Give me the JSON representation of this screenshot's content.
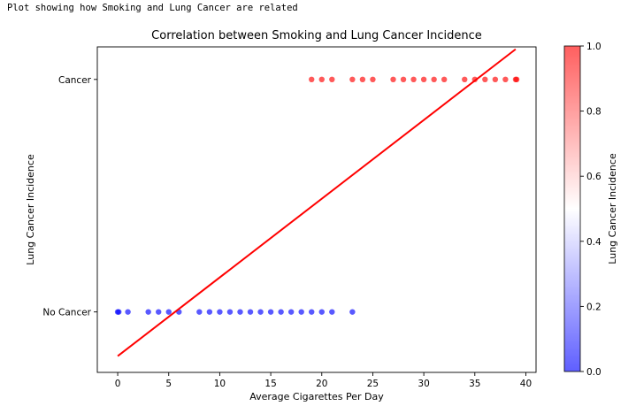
{
  "caption": "Plot showing how Smoking and Lung Cancer are related",
  "chart_data": {
    "type": "scatter",
    "title": "Correlation between Smoking and Lung Cancer Incidence",
    "xlabel": "Average Cigarettes Per Day",
    "ylabel": "Lung Cancer Incidence",
    "xlim": [
      -2,
      41
    ],
    "ylim": [
      -0.26,
      1.14
    ],
    "xticks": [
      0,
      5,
      10,
      15,
      20,
      25,
      30,
      35,
      40
    ],
    "yticks": [
      {
        "value": 0,
        "label": "No Cancer"
      },
      {
        "value": 1,
        "label": "Cancer"
      }
    ],
    "colormap": "bwr",
    "colorbar": {
      "label": "Lung Cancer Incidence",
      "range": [
        0,
        1
      ],
      "ticks": [
        "0.0",
        "0.2",
        "0.4",
        "0.6",
        "0.8",
        "1.0"
      ]
    },
    "grid": false,
    "points_no_cancer": [
      0,
      0.1,
      1,
      3,
      4,
      5,
      6,
      8,
      9,
      10,
      11,
      12,
      13,
      14,
      15,
      16,
      17,
      18,
      19,
      20,
      21,
      23
    ],
    "points_cancer": [
      19,
      20,
      21,
      23,
      24,
      25,
      27,
      28,
      29,
      30,
      31,
      32,
      34,
      35,
      36,
      37,
      38,
      39,
      39.1
    ],
    "point_alpha": 0.65,
    "regression_line": {
      "x": [
        0,
        39
      ],
      "y": [
        -0.19,
        1.13
      ],
      "color": "#ff0000"
    },
    "colors": {
      "low": "#0000ff",
      "high": "#ff0000"
    }
  }
}
